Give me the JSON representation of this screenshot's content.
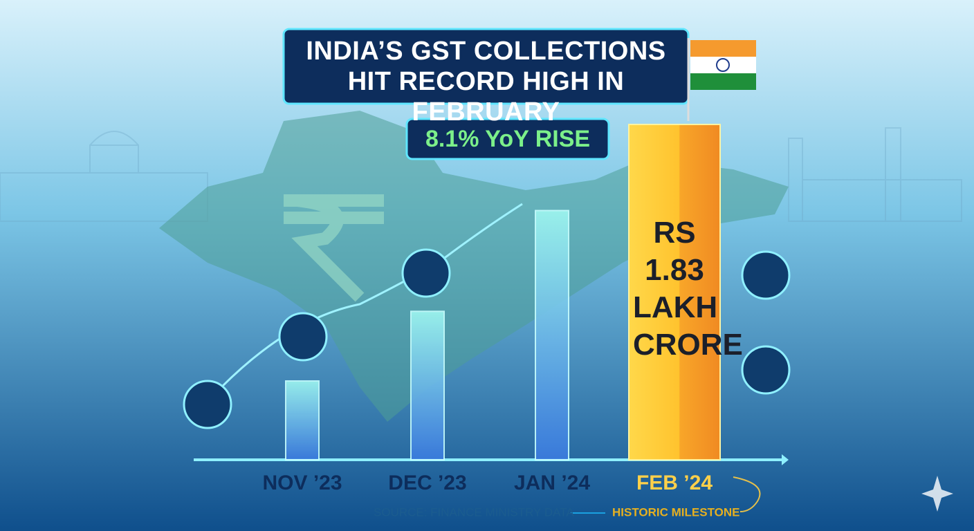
{
  "chart_data": {
    "type": "bar",
    "title": "INDIA’S GST COLLECTIONS HIT RECORD HIGH IN FEBRUARY",
    "annotations": [
      "8.1% YoY RISE",
      "HISTORIC MILESTONE"
    ],
    "source": "SOURCE: FINANCE MINISTRY DATA",
    "categories": [
      "NOV ’23",
      "DEC ’23",
      "JAN ’24",
      "FEB ’24"
    ],
    "values": [
      0.43,
      0.81,
      1.36,
      1.83
    ],
    "value_labels": [
      null,
      null,
      null,
      "RS 1.83 LAKH CRORE"
    ],
    "color": "#4fd8e8",
    "highlight_color": "#ffc32e"
  }
}
